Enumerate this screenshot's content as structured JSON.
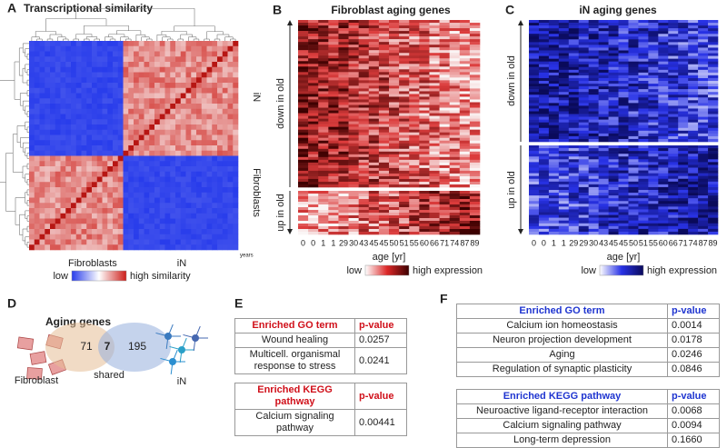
{
  "panels": {
    "a": {
      "label": "A",
      "title": "Transcriptional similarity",
      "years_label": "years",
      "x_groups": [
        "Fibroblasts",
        "iN"
      ],
      "y_groups": [
        "iN",
        "Fibroblasts"
      ],
      "legend": {
        "low": "low",
        "high": "high similarity"
      }
    },
    "b": {
      "label": "B",
      "title": "Fibroblast aging genes",
      "row_groups": [
        "down in old",
        "up in old"
      ],
      "ages": [
        "0",
        "0",
        "1",
        "1",
        "29",
        "30",
        "43",
        "45",
        "45",
        "50",
        "51",
        "55",
        "60",
        "66",
        "71",
        "74",
        "87",
        "89"
      ],
      "x_label": "age [yr]",
      "legend": {
        "low": "low",
        "high": "high expression"
      }
    },
    "c": {
      "label": "C",
      "title": "iN aging genes",
      "row_groups": [
        "down in old",
        "up in old"
      ],
      "ages": [
        "0",
        "0",
        "1",
        "1",
        "29",
        "29",
        "30",
        "43",
        "45",
        "45",
        "50",
        "51",
        "55",
        "60",
        "66",
        "71",
        "74",
        "87",
        "89"
      ],
      "x_label": "age [yr]",
      "legend": {
        "low": "low",
        "high": "high expression"
      }
    },
    "d": {
      "label": "D",
      "title": "Aging genes",
      "counts": [
        71,
        7,
        195
      ],
      "sets": [
        "Fibroblast",
        "shared",
        "iN"
      ]
    },
    "e": {
      "label": "E",
      "tables": [
        {
          "header": [
            "Enriched GO term",
            "p-value"
          ],
          "rows": [
            [
              "Wound healing",
              "0.0257"
            ],
            [
              "Multicell. organismal response to stress",
              "0.0241"
            ]
          ]
        },
        {
          "header": [
            "Enriched KEGG pathway",
            "p-value"
          ],
          "rows": [
            [
              "Calcium signaling pathway",
              "0.00441"
            ]
          ]
        }
      ]
    },
    "f": {
      "label": "F",
      "tables": [
        {
          "header": [
            "Enriched GO term",
            "p-value"
          ],
          "rows": [
            [
              "Calcium ion homeostasis",
              "0.0014"
            ],
            [
              "Neuron projection development",
              "0.0178"
            ],
            [
              "Aging",
              "0.0246"
            ],
            [
              "Regulation of synaptic plasticity",
              "0.0846"
            ]
          ]
        },
        {
          "header": [
            "Enriched KEGG pathway",
            "p-value"
          ],
          "rows": [
            [
              "Neuroactive ligand-receptor interaction",
              "0.0068"
            ],
            [
              "Calcium signaling pathway",
              "0.0094"
            ],
            [
              "Long-term depression",
              "0.1660"
            ]
          ]
        }
      ]
    }
  }
}
